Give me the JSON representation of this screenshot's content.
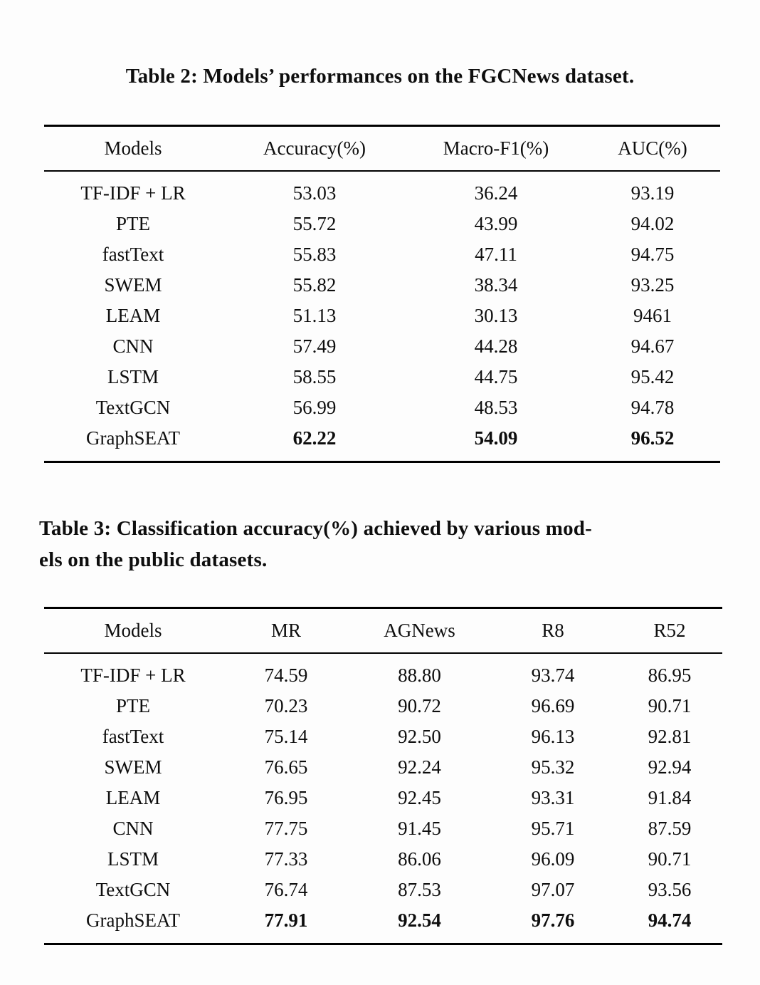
{
  "page": {
    "background_color": "#fdfdfd",
    "text_color": "#0e0e0e"
  },
  "table2": {
    "title": "Table 2: Models’ performances on the FGCNews dataset.",
    "columns": [
      "Models",
      "Accuracy(%)",
      "Macro-F1(%)",
      "AUC(%)"
    ],
    "rows": [
      {
        "model": "TF-IDF + LR",
        "values": [
          "53.03",
          "36.24",
          "93.19"
        ],
        "bold": false
      },
      {
        "model": "PTE",
        "values": [
          "55.72",
          "43.99",
          "94.02"
        ],
        "bold": false
      },
      {
        "model": "fastText",
        "values": [
          "55.83",
          "47.11",
          "94.75"
        ],
        "bold": false
      },
      {
        "model": "SWEM",
        "values": [
          "55.82",
          "38.34",
          "93.25"
        ],
        "bold": false
      },
      {
        "model": "LEAM",
        "values": [
          "51.13",
          "30.13",
          "9461"
        ],
        "bold": false
      },
      {
        "model": "CNN",
        "values": [
          "57.49",
          "44.28",
          "94.67"
        ],
        "bold": false
      },
      {
        "model": "LSTM",
        "values": [
          "58.55",
          "44.75",
          "95.42"
        ],
        "bold": false
      },
      {
        "model": "TextGCN",
        "values": [
          "56.99",
          "48.53",
          "94.78"
        ],
        "bold": false
      },
      {
        "model": "GraphSEAT",
        "values": [
          "62.22",
          "54.09",
          "96.52"
        ],
        "bold": true
      }
    ]
  },
  "table3": {
    "title_lines": [
      "Table 3: Classification accuracy(%) achieved by various mod-",
      "els on the public datasets."
    ],
    "columns": [
      "Models",
      "MR",
      "AGNews",
      "R8",
      "R52"
    ],
    "rows": [
      {
        "model": "TF-IDF + LR",
        "values": [
          "74.59",
          "88.80",
          "93.74",
          "86.95"
        ],
        "bold": false
      },
      {
        "model": "PTE",
        "values": [
          "70.23",
          "90.72",
          "96.69",
          "90.71"
        ],
        "bold": false
      },
      {
        "model": "fastText",
        "values": [
          "75.14",
          "92.50",
          "96.13",
          "92.81"
        ],
        "bold": false
      },
      {
        "model": "SWEM",
        "values": [
          "76.65",
          "92.24",
          "95.32",
          "92.94"
        ],
        "bold": false
      },
      {
        "model": "LEAM",
        "values": [
          "76.95",
          "92.45",
          "93.31",
          "91.84"
        ],
        "bold": false
      },
      {
        "model": "CNN",
        "values": [
          "77.75",
          "91.45",
          "95.71",
          "87.59"
        ],
        "bold": false
      },
      {
        "model": "LSTM",
        "values": [
          "77.33",
          "86.06",
          "96.09",
          "90.71"
        ],
        "bold": false
      },
      {
        "model": "TextGCN",
        "values": [
          "76.74",
          "87.53",
          "97.07",
          "93.56"
        ],
        "bold": false
      },
      {
        "model": "GraphSEAT",
        "values": [
          "77.91",
          "92.54",
          "97.76",
          "94.74"
        ],
        "bold": true
      }
    ]
  },
  "chart_data": [
    {
      "type": "table",
      "title": "Table 2: Models’ performances on the FGCNews dataset.",
      "columns": [
        "Models",
        "Accuracy(%)",
        "Macro-F1(%)",
        "AUC(%)"
      ],
      "rows": [
        [
          "TF-IDF + LR",
          53.03,
          36.24,
          93.19
        ],
        [
          "PTE",
          55.72,
          43.99,
          94.02
        ],
        [
          "fastText",
          55.83,
          47.11,
          94.75
        ],
        [
          "SWEM",
          55.82,
          38.34,
          93.25
        ],
        [
          "LEAM",
          51.13,
          30.13,
          9461
        ],
        [
          "CNN",
          57.49,
          44.28,
          94.67
        ],
        [
          "LSTM",
          58.55,
          44.75,
          95.42
        ],
        [
          "TextGCN",
          56.99,
          48.53,
          94.78
        ],
        [
          "GraphSEAT",
          62.22,
          54.09,
          96.52
        ]
      ]
    },
    {
      "type": "table",
      "title": "Table 3: Classification accuracy(%) achieved by various models on the public datasets.",
      "columns": [
        "Models",
        "MR",
        "AGNews",
        "R8",
        "R52"
      ],
      "rows": [
        [
          "TF-IDF + LR",
          74.59,
          88.8,
          93.74,
          86.95
        ],
        [
          "PTE",
          70.23,
          90.72,
          96.69,
          90.71
        ],
        [
          "fastText",
          75.14,
          92.5,
          96.13,
          92.81
        ],
        [
          "SWEM",
          76.65,
          92.24,
          95.32,
          92.94
        ],
        [
          "LEAM",
          76.95,
          92.45,
          93.31,
          91.84
        ],
        [
          "CNN",
          77.75,
          91.45,
          95.71,
          87.59
        ],
        [
          "LSTM",
          77.33,
          86.06,
          96.09,
          90.71
        ],
        [
          "TextGCN",
          76.74,
          87.53,
          97.07,
          93.56
        ],
        [
          "GraphSEAT",
          77.91,
          92.54,
          97.76,
          94.74
        ]
      ]
    }
  ]
}
